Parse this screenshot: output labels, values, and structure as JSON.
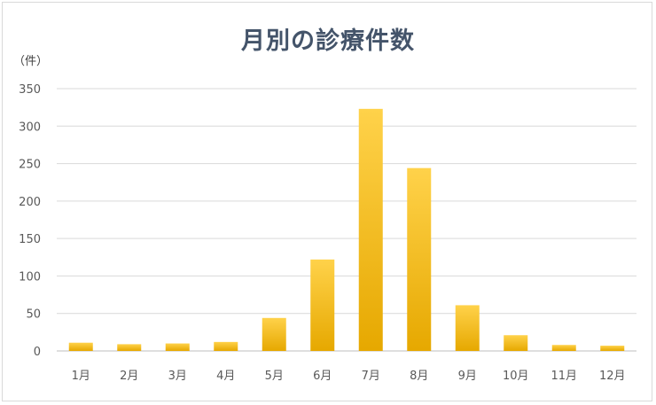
{
  "chart_data": {
    "type": "bar",
    "title": "月別の診療件数",
    "unit_label": "（件）",
    "categories": [
      "1月",
      "2月",
      "3月",
      "4月",
      "5月",
      "6月",
      "7月",
      "8月",
      "9月",
      "10月",
      "11月",
      "12月"
    ],
    "values": [
      11,
      9,
      10,
      12,
      44,
      122,
      323,
      244,
      61,
      21,
      8,
      7
    ],
    "ylim": [
      0,
      350
    ],
    "yticks": [
      0,
      50,
      100,
      150,
      200,
      250,
      300,
      350
    ],
    "grid": true,
    "bar_color_top": "#ffd24a",
    "bar_color_bottom": "#e6a800"
  }
}
